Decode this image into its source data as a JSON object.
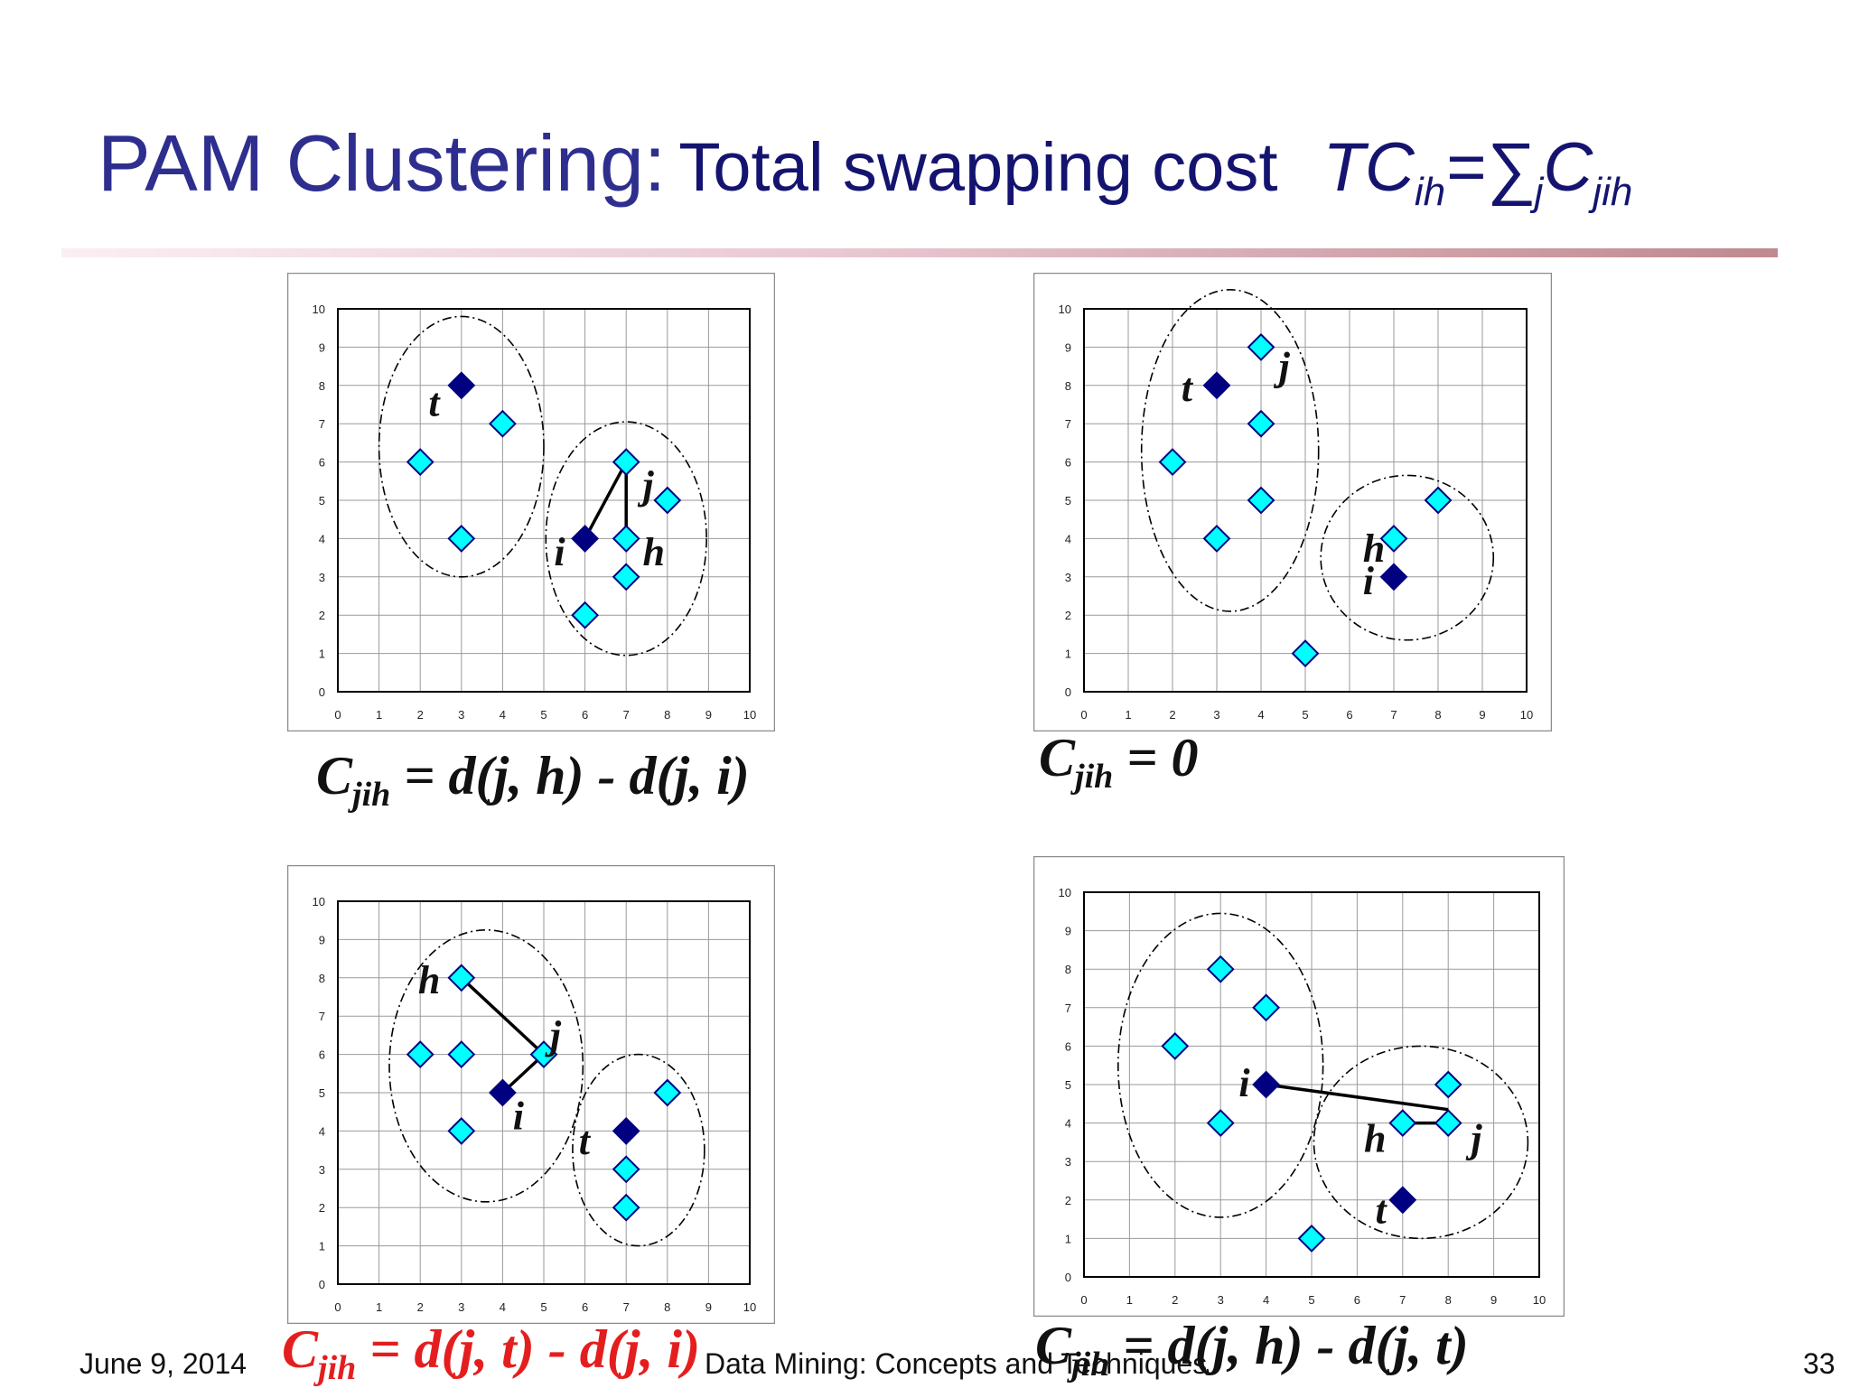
{
  "title": {
    "main": "PAM Clustering:",
    "sub": "Total swapping cost",
    "tc": "TC",
    "tc_sub": "ih",
    "sum": "=∑",
    "sum_sub": "j",
    "c": "C",
    "c_sub": "jih"
  },
  "panels": [
    {
      "eq": {
        "c": "C",
        "sub": "jih",
        "rhs": " = d(j, h) - d(j, i)",
        "color": "#111111"
      },
      "cyan": [
        [
          2,
          6
        ],
        [
          3,
          4
        ],
        [
          4,
          7
        ],
        [
          6,
          2
        ],
        [
          7,
          3
        ],
        [
          7,
          4
        ],
        [
          7,
          6
        ],
        [
          8,
          5
        ]
      ],
      "navy": [
        [
          3,
          8
        ],
        [
          6,
          4
        ]
      ],
      "labels": [
        {
          "t": "t",
          "x": 2.2,
          "y": 7.2
        },
        {
          "t": "i",
          "x": 5.25,
          "y": 3.3
        },
        {
          "t": "j",
          "x": 7.4,
          "y": 5.05
        },
        {
          "t": "h",
          "x": 7.4,
          "y": 3.3
        }
      ],
      "lines": [
        [
          6,
          4,
          7,
          6
        ],
        [
          7,
          4,
          7,
          6
        ]
      ],
      "ellipses": [
        [
          3,
          6.4,
          2,
          3.4
        ],
        [
          7,
          4,
          1.95,
          3.05
        ]
      ]
    },
    {
      "eq": {
        "c": "C",
        "sub": "jih",
        "rhs": " = 0",
        "color": "#111111"
      },
      "cyan": [
        [
          2,
          6
        ],
        [
          3,
          4
        ],
        [
          4,
          5
        ],
        [
          4,
          7
        ],
        [
          4,
          9
        ],
        [
          5,
          1
        ],
        [
          7,
          4
        ],
        [
          8,
          5
        ]
      ],
      "navy": [
        [
          3,
          8
        ],
        [
          7,
          3
        ]
      ],
      "labels": [
        {
          "t": "t",
          "x": 2.2,
          "y": 7.6
        },
        {
          "t": "j",
          "x": 4.4,
          "y": 8.15
        },
        {
          "t": "h",
          "x": 6.3,
          "y": 3.4
        },
        {
          "t": "i",
          "x": 6.3,
          "y": 2.55
        }
      ],
      "lines": [],
      "ellipses": [
        [
          3.3,
          6.3,
          2,
          4.2
        ],
        [
          7.3,
          3.5,
          1.95,
          2.15
        ]
      ]
    },
    {
      "eq": {
        "c": "C",
        "sub": "jih",
        "rhs": " = d(j, t) - d(j, i)",
        "color": "#e41e1e"
      },
      "cyan": [
        [
          2,
          6
        ],
        [
          3,
          4
        ],
        [
          3,
          6
        ],
        [
          3,
          8
        ],
        [
          5,
          6
        ],
        [
          7,
          2
        ],
        [
          7,
          3
        ],
        [
          8,
          5
        ]
      ],
      "navy": [
        [
          4,
          5
        ],
        [
          7,
          4
        ]
      ],
      "labels": [
        {
          "t": "h",
          "x": 1.95,
          "y": 7.6
        },
        {
          "t": "j",
          "x": 5.15,
          "y": 6.15
        },
        {
          "t": "i",
          "x": 4.25,
          "y": 4.05
        },
        {
          "t": "t",
          "x": 5.85,
          "y": 3.4
        }
      ],
      "lines": [
        [
          3,
          8,
          5,
          6
        ],
        [
          5,
          6,
          4,
          5
        ]
      ],
      "ellipses": [
        [
          3.6,
          5.7,
          2.35,
          3.55
        ],
        [
          7.3,
          3.5,
          1.6,
          2.5
        ]
      ]
    },
    {
      "eq": {
        "c": "C",
        "sub": "jih",
        "rhs": " = d(j, h) - d(j, t)",
        "color": "#111111"
      },
      "cyan": [
        [
          2,
          6
        ],
        [
          3,
          4
        ],
        [
          3,
          8
        ],
        [
          4,
          7
        ],
        [
          5,
          1
        ],
        [
          7,
          4
        ],
        [
          8,
          4
        ],
        [
          8,
          5
        ]
      ],
      "navy": [
        [
          4,
          5
        ],
        [
          7,
          2
        ]
      ],
      "labels": [
        {
          "t": "i",
          "x": 3.4,
          "y": 4.7
        },
        {
          "t": "h",
          "x": 6.15,
          "y": 3.25
        },
        {
          "t": "j",
          "x": 8.5,
          "y": 3.25
        },
        {
          "t": "t",
          "x": 6.4,
          "y": 1.4
        }
      ],
      "lines": [
        [
          4,
          5,
          8,
          4.35
        ],
        [
          7,
          4,
          8,
          4
        ]
      ],
      "ellipses": [
        [
          3,
          5.5,
          2.25,
          3.95
        ],
        [
          7.4,
          3.5,
          2.35,
          2.5
        ]
      ]
    }
  ],
  "axis": {
    "x_ticks": [
      "0",
      "1",
      "2",
      "3",
      "4",
      "5",
      "6",
      "7",
      "8",
      "9",
      "10"
    ],
    "y_ticks": [
      "0",
      "1",
      "2",
      "3",
      "4",
      "5",
      "6",
      "7",
      "8",
      "9",
      "10"
    ]
  },
  "colors": {
    "cyan": "#00ffff",
    "navy": "#000080",
    "grid": "#9a9a9a"
  },
  "footer": {
    "date": "June 9, 2014",
    "course": "Data Mining: Concepts and Techniques",
    "page": "33"
  }
}
